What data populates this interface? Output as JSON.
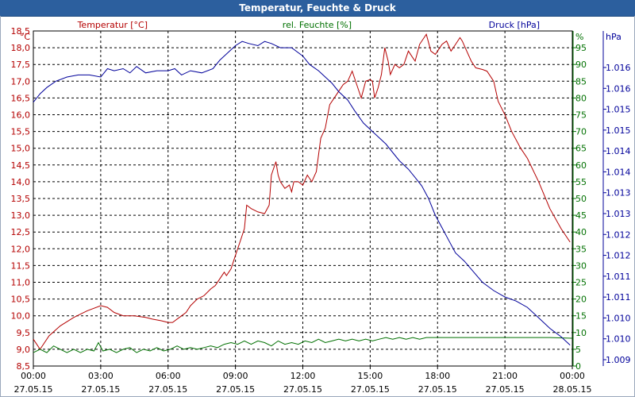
{
  "window": {
    "title": "Temperatur, Feuchte & Druck"
  },
  "colors": {
    "temperature": "#b40000",
    "humidity": "#007000",
    "pressure": "#00009a",
    "grid": "#000000",
    "title_bg": "#2c5f9e"
  },
  "chart_data": {
    "type": "line",
    "title": "Temperatur, Feuchte & Druck",
    "x_tick_labels": [
      {
        "time": "00:00",
        "date": "27.05.15"
      },
      {
        "time": "03:00",
        "date": "27.05.15"
      },
      {
        "time": "06:00",
        "date": "27.05.15"
      },
      {
        "time": "09:00",
        "date": "27.05.15"
      },
      {
        "time": "12:00",
        "date": "27.05.15"
      },
      {
        "time": "15:00",
        "date": "27.05.15"
      },
      {
        "time": "18:00",
        "date": "27.05.15"
      },
      {
        "time": "21:00",
        "date": "27.05.15"
      },
      {
        "time": "00:00",
        "date": "28.05.15"
      }
    ],
    "xlim": [
      0,
      24
    ],
    "axes": {
      "temperature": {
        "label": "Temperatur [°C]",
        "unit": "°C",
        "ylim": [
          8.5,
          18.5
        ],
        "ticks": [
          "8,5",
          "9,0",
          "9,5",
          "10,0",
          "10,5",
          "11,0",
          "11,5",
          "12,0",
          "12,5",
          "13,0",
          "13,5",
          "14,0",
          "14,5",
          "15,0",
          "15,5",
          "16,0",
          "16,5",
          "17,0",
          "17,5",
          "18,0",
          "18,5"
        ]
      },
      "humidity": {
        "label": "rel. Feuchte [%]",
        "unit": "%",
        "ylim": [
          0,
          100
        ],
        "ticks": [
          "0",
          "5",
          "10",
          "15",
          "20",
          "25",
          "30",
          "35",
          "40",
          "45",
          "50",
          "55",
          "60",
          "65",
          "70",
          "75",
          "80",
          "85",
          "90",
          "95"
        ]
      },
      "pressure": {
        "label": "Druck [hPa]",
        "unit": "hPa",
        "ylim": [
          1008.8,
          1016.8
        ],
        "ticks": [
          "1.009",
          "1.010",
          "1.010",
          "1.011",
          "1.011",
          "1.012",
          "1.012",
          "1.013",
          "1.013",
          "1.014",
          "1.014",
          "1.015",
          "1.015",
          "1.016",
          "1.016"
        ]
      }
    },
    "series": [
      {
        "name": "Temperatur",
        "axis": "temperature",
        "color": "#b40000",
        "points": [
          [
            0,
            9.3
          ],
          [
            0.3,
            9.0
          ],
          [
            0.7,
            9.4
          ],
          [
            1.2,
            9.7
          ],
          [
            1.8,
            9.95
          ],
          [
            2.4,
            10.15
          ],
          [
            3.0,
            10.3
          ],
          [
            3.3,
            10.25
          ],
          [
            3.6,
            10.1
          ],
          [
            4.0,
            10.0
          ],
          [
            4.5,
            10.0
          ],
          [
            5.0,
            9.95
          ],
          [
            5.3,
            9.9
          ],
          [
            5.7,
            9.85
          ],
          [
            6.0,
            9.8
          ],
          [
            6.2,
            9.8
          ],
          [
            6.5,
            9.95
          ],
          [
            6.8,
            10.1
          ],
          [
            7.0,
            10.3
          ],
          [
            7.3,
            10.5
          ],
          [
            7.6,
            10.6
          ],
          [
            7.9,
            10.8
          ],
          [
            8.1,
            10.9
          ],
          [
            8.3,
            11.1
          ],
          [
            8.5,
            11.3
          ],
          [
            8.6,
            11.2
          ],
          [
            8.8,
            11.4
          ],
          [
            9.0,
            11.8
          ],
          [
            9.2,
            12.2
          ],
          [
            9.4,
            12.6
          ],
          [
            9.5,
            13.3
          ],
          [
            9.7,
            13.2
          ],
          [
            10.0,
            13.1
          ],
          [
            10.3,
            13.05
          ],
          [
            10.5,
            13.3
          ],
          [
            10.6,
            14.2
          ],
          [
            10.8,
            14.6
          ],
          [
            10.9,
            14.2
          ],
          [
            11.0,
            14.0
          ],
          [
            11.2,
            13.8
          ],
          [
            11.4,
            13.9
          ],
          [
            11.5,
            13.7
          ],
          [
            11.6,
            14.0
          ],
          [
            11.8,
            14.0
          ],
          [
            12.0,
            13.9
          ],
          [
            12.2,
            14.2
          ],
          [
            12.4,
            14.0
          ],
          [
            12.6,
            14.3
          ],
          [
            12.8,
            15.3
          ],
          [
            13.0,
            15.6
          ],
          [
            13.2,
            16.3
          ],
          [
            13.5,
            16.6
          ],
          [
            13.8,
            16.9
          ],
          [
            14.0,
            17.0
          ],
          [
            14.2,
            17.3
          ],
          [
            14.4,
            16.9
          ],
          [
            14.6,
            16.5
          ],
          [
            14.8,
            17.0
          ],
          [
            15.0,
            17.05
          ],
          [
            15.1,
            17.0
          ],
          [
            15.2,
            16.5
          ],
          [
            15.35,
            16.8
          ],
          [
            15.5,
            17.2
          ],
          [
            15.65,
            18.0
          ],
          [
            15.8,
            17.6
          ],
          [
            15.9,
            17.2
          ],
          [
            16.1,
            17.5
          ],
          [
            16.3,
            17.4
          ],
          [
            16.5,
            17.5
          ],
          [
            16.7,
            17.9
          ],
          [
            16.9,
            17.7
          ],
          [
            17.0,
            17.6
          ],
          [
            17.2,
            18.1
          ],
          [
            17.4,
            18.3
          ],
          [
            17.5,
            18.4
          ],
          [
            17.7,
            17.9
          ],
          [
            17.9,
            17.8
          ],
          [
            18.0,
            17.9
          ],
          [
            18.2,
            18.1
          ],
          [
            18.4,
            18.2
          ],
          [
            18.5,
            18.05
          ],
          [
            18.6,
            17.9
          ],
          [
            18.8,
            18.1
          ],
          [
            19.0,
            18.3
          ],
          [
            19.1,
            18.2
          ],
          [
            19.3,
            17.9
          ],
          [
            19.5,
            17.6
          ],
          [
            19.7,
            17.4
          ],
          [
            20.0,
            17.35
          ],
          [
            20.2,
            17.3
          ],
          [
            20.5,
            17.0
          ],
          [
            20.7,
            16.4
          ],
          [
            21.0,
            16.0
          ],
          [
            21.3,
            15.5
          ],
          [
            21.7,
            15.0
          ],
          [
            22.0,
            14.7
          ],
          [
            22.5,
            14.0
          ],
          [
            23.0,
            13.2
          ],
          [
            23.5,
            12.6
          ],
          [
            23.9,
            12.2
          ]
        ]
      },
      {
        "name": "rel. Feuchte",
        "axis": "humidity",
        "color": "#007000",
        "points": [
          [
            0,
            4
          ],
          [
            0.3,
            5
          ],
          [
            0.6,
            4
          ],
          [
            0.9,
            6
          ],
          [
            1.2,
            5
          ],
          [
            1.5,
            4
          ],
          [
            1.8,
            5
          ],
          [
            2.1,
            4
          ],
          [
            2.4,
            5
          ],
          [
            2.7,
            4.5
          ],
          [
            2.9,
            7
          ],
          [
            3.1,
            4.5
          ],
          [
            3.4,
            5
          ],
          [
            3.7,
            4
          ],
          [
            4.0,
            5
          ],
          [
            4.3,
            5.5
          ],
          [
            4.6,
            4
          ],
          [
            4.9,
            5
          ],
          [
            5.2,
            4.5
          ],
          [
            5.5,
            5.5
          ],
          [
            5.8,
            4.5
          ],
          [
            6.1,
            5
          ],
          [
            6.4,
            6
          ],
          [
            6.7,
            5
          ],
          [
            7.0,
            5.5
          ],
          [
            7.3,
            5
          ],
          [
            7.6,
            5.5
          ],
          [
            7.9,
            6
          ],
          [
            8.2,
            5.5
          ],
          [
            8.5,
            6.5
          ],
          [
            8.8,
            7
          ],
          [
            9.1,
            6.5
          ],
          [
            9.4,
            7.5
          ],
          [
            9.7,
            6.5
          ],
          [
            10.0,
            7.5
          ],
          [
            10.3,
            7
          ],
          [
            10.6,
            6
          ],
          [
            10.9,
            7.5
          ],
          [
            11.2,
            6.5
          ],
          [
            11.5,
            7
          ],
          [
            11.8,
            6.5
          ],
          [
            12.1,
            7.5
          ],
          [
            12.4,
            7
          ],
          [
            12.7,
            8
          ],
          [
            13.0,
            7
          ],
          [
            13.3,
            7.5
          ],
          [
            13.6,
            8
          ],
          [
            13.9,
            7.5
          ],
          [
            14.2,
            8
          ],
          [
            14.5,
            7.5
          ],
          [
            14.8,
            8
          ],
          [
            15.1,
            7.5
          ],
          [
            15.4,
            8
          ],
          [
            15.7,
            8.5
          ],
          [
            16.0,
            8
          ],
          [
            16.3,
            8.5
          ],
          [
            16.6,
            8
          ],
          [
            16.9,
            8.5
          ],
          [
            17.2,
            8
          ],
          [
            17.5,
            8.5
          ],
          [
            18.0,
            8.5
          ],
          [
            19.0,
            8.5
          ],
          [
            20.0,
            8.5
          ],
          [
            21.0,
            8.5
          ],
          [
            22.0,
            8.5
          ],
          [
            23.0,
            8.5
          ],
          [
            24.0,
            8.3
          ]
        ]
      },
      {
        "name": "Druck",
        "axis": "pressure",
        "color": "#00009a",
        "points": [
          [
            0,
            1015.1
          ],
          [
            0.3,
            1015.3
          ],
          [
            0.6,
            1015.45
          ],
          [
            1.0,
            1015.6
          ],
          [
            1.5,
            1015.7
          ],
          [
            2.0,
            1015.75
          ],
          [
            2.5,
            1015.75
          ],
          [
            3.0,
            1015.7
          ],
          [
            3.3,
            1015.9
          ],
          [
            3.6,
            1015.85
          ],
          [
            4.0,
            1015.9
          ],
          [
            4.3,
            1015.8
          ],
          [
            4.6,
            1015.95
          ],
          [
            5.0,
            1015.8
          ],
          [
            5.5,
            1015.85
          ],
          [
            6.0,
            1015.85
          ],
          [
            6.3,
            1015.9
          ],
          [
            6.6,
            1015.75
          ],
          [
            7.0,
            1015.85
          ],
          [
            7.5,
            1015.8
          ],
          [
            8.0,
            1015.9
          ],
          [
            8.3,
            1016.1
          ],
          [
            8.6,
            1016.25
          ],
          [
            9.0,
            1016.45
          ],
          [
            9.3,
            1016.55
          ],
          [
            9.6,
            1016.5
          ],
          [
            10.0,
            1016.45
          ],
          [
            10.3,
            1016.55
          ],
          [
            10.6,
            1016.5
          ],
          [
            11.0,
            1016.4
          ],
          [
            11.5,
            1016.4
          ],
          [
            12.0,
            1016.2
          ],
          [
            12.3,
            1016.0
          ],
          [
            12.7,
            1015.85
          ],
          [
            13.0,
            1015.7
          ],
          [
            13.3,
            1015.55
          ],
          [
            13.6,
            1015.35
          ],
          [
            14.0,
            1015.15
          ],
          [
            14.3,
            1014.9
          ],
          [
            14.7,
            1014.6
          ],
          [
            15.0,
            1014.45
          ],
          [
            15.3,
            1014.3
          ],
          [
            15.7,
            1014.1
          ],
          [
            16.0,
            1013.9
          ],
          [
            16.3,
            1013.7
          ],
          [
            16.7,
            1013.5
          ],
          [
            17.0,
            1013.3
          ],
          [
            17.3,
            1013.1
          ],
          [
            17.6,
            1012.8
          ],
          [
            17.9,
            1012.4
          ],
          [
            18.2,
            1012.1
          ],
          [
            18.5,
            1011.8
          ],
          [
            18.8,
            1011.5
          ],
          [
            19.2,
            1011.3
          ],
          [
            19.6,
            1011.05
          ],
          [
            20.0,
            1010.8
          ],
          [
            20.5,
            1010.6
          ],
          [
            21.0,
            1010.45
          ],
          [
            21.5,
            1010.35
          ],
          [
            22.0,
            1010.2
          ],
          [
            22.5,
            1009.95
          ],
          [
            23.0,
            1009.7
          ],
          [
            23.5,
            1009.5
          ],
          [
            23.9,
            1009.3
          ]
        ]
      }
    ]
  }
}
